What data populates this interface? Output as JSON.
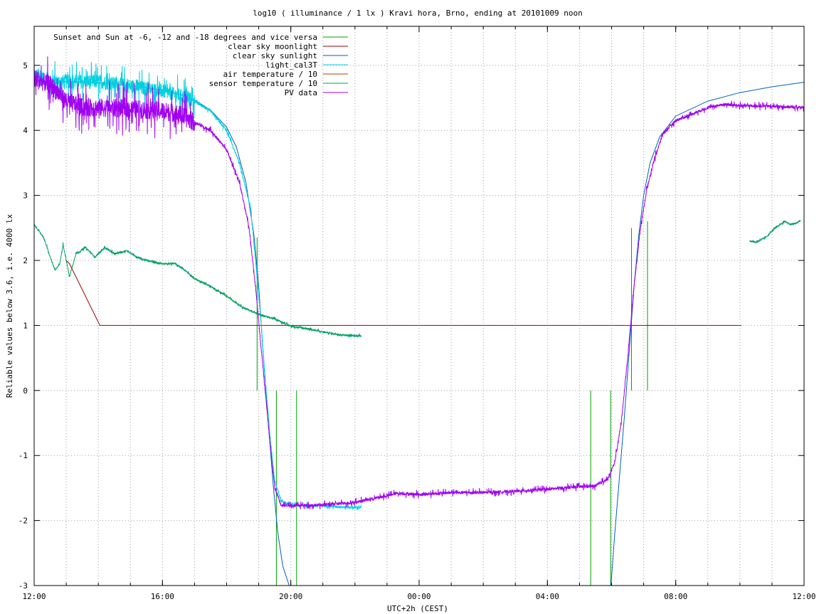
{
  "chart_data": {
    "type": "line",
    "title": "log10 ( illuminance / 1 lx ) Kravi hora, Brno, ending at 20101009 noon",
    "xlabel": "UTC+2h (CEST)",
    "ylabel": "Reliable values below 3.6, i.e. 4000 lx",
    "xlim": [
      12,
      36
    ],
    "ylim": [
      -3,
      5.6
    ],
    "x_unit": "hours since 12:00 local time (UTC+2h)",
    "x_ticks": [
      {
        "x": 12,
        "label": "12:00"
      },
      {
        "x": 16,
        "label": "16:00"
      },
      {
        "x": 20,
        "label": "20:00"
      },
      {
        "x": 24,
        "label": "00:00"
      },
      {
        "x": 28,
        "label": "04:00"
      },
      {
        "x": 32,
        "label": "08:00"
      },
      {
        "x": 36,
        "label": "12:00"
      }
    ],
    "y_ticks": [
      {
        "y": -3,
        "label": "-3"
      },
      {
        "y": -2,
        "label": "-2"
      },
      {
        "y": -1,
        "label": "-1"
      },
      {
        "y": 0,
        "label": "0"
      },
      {
        "y": 1,
        "label": "1"
      },
      {
        "y": 2,
        "label": "2"
      },
      {
        "y": 3,
        "label": "3"
      },
      {
        "y": 4,
        "label": "4"
      },
      {
        "y": 5,
        "label": "5"
      }
    ],
    "grid": true,
    "legend_position": "top-left",
    "series": [
      {
        "name": "Sunset and Sun at -6, -12 and -18 degrees and vice versa",
        "color": "#00a000",
        "style": "vertical-markers",
        "markers": [
          {
            "x": 18.95,
            "y0": 0,
            "y1": 2.35
          },
          {
            "x": 19.55,
            "y0": -3,
            "y1": 0
          },
          {
            "x": 20.18,
            "y0": -3,
            "y1": 0
          },
          {
            "x": 29.35,
            "y0": -3,
            "y1": 0
          },
          {
            "x": 29.97,
            "y0": -3,
            "y1": 0
          },
          {
            "x": 30.62,
            "y0": 0,
            "y1": 2.5
          },
          {
            "x": 31.12,
            "y0": 0,
            "y1": 2.6
          }
        ]
      },
      {
        "name": "clear sky moonlight",
        "color": "#a00000",
        "points": [
          [
            13.0,
            2.0
          ],
          [
            13.1,
            1.95
          ],
          [
            14.05,
            1.0
          ],
          [
            34.05,
            1.0
          ]
        ]
      },
      {
        "name": "clear sky sunlight",
        "color": "#0060c0",
        "points": [
          [
            12.0,
            4.76
          ],
          [
            13.0,
            4.75
          ],
          [
            14.0,
            4.73
          ],
          [
            15.0,
            4.69
          ],
          [
            16.0,
            4.62
          ],
          [
            16.5,
            4.56
          ],
          [
            17.0,
            4.47
          ],
          [
            17.5,
            4.31
          ],
          [
            18.0,
            4.05
          ],
          [
            18.3,
            3.75
          ],
          [
            18.6,
            3.2
          ],
          [
            18.85,
            2.4
          ],
          [
            19.0,
            1.6
          ],
          [
            19.15,
            0.5
          ],
          [
            19.3,
            -0.5
          ],
          [
            19.45,
            -1.45
          ],
          [
            19.6,
            -2.2
          ],
          [
            19.75,
            -2.7
          ],
          [
            19.95,
            -3.0
          ],
          [
            29.98,
            -3.0
          ],
          [
            30.1,
            -2.2
          ],
          [
            30.25,
            -1.3
          ],
          [
            30.4,
            -0.4
          ],
          [
            30.55,
            0.6
          ],
          [
            30.7,
            1.6
          ],
          [
            30.85,
            2.4
          ],
          [
            31.0,
            3.0
          ],
          [
            31.2,
            3.5
          ],
          [
            31.5,
            3.9
          ],
          [
            32.0,
            4.22
          ],
          [
            33.0,
            4.45
          ],
          [
            34.0,
            4.58
          ],
          [
            35.0,
            4.67
          ],
          [
            36.0,
            4.74
          ]
        ]
      },
      {
        "name": "light_cal3T",
        "color": "#00d0e0",
        "noise": 0.1,
        "points": [
          [
            12.0,
            4.85
          ],
          [
            12.5,
            4.75
          ],
          [
            13.0,
            4.75
          ],
          [
            14.0,
            4.75
          ],
          [
            15.0,
            4.68
          ],
          [
            16.0,
            4.6
          ],
          [
            16.8,
            4.5
          ],
          [
            17.5,
            4.3
          ],
          [
            18.0,
            4.0
          ],
          [
            18.4,
            3.5
          ],
          [
            18.75,
            2.8
          ],
          [
            18.9,
            2.0
          ],
          [
            19.05,
            1.2
          ],
          [
            19.2,
            0.2
          ],
          [
            19.35,
            -0.7
          ],
          [
            19.5,
            -1.4
          ],
          [
            19.7,
            -1.7
          ],
          [
            20.0,
            -1.77
          ],
          [
            21.0,
            -1.77
          ],
          [
            21.5,
            -1.79
          ],
          [
            22.2,
            -1.8
          ]
        ]
      },
      {
        "name": "air temperature / 10",
        "color": "#b04000",
        "style": "none",
        "points": []
      },
      {
        "name": "sensor temperature / 10",
        "color": "#00a060",
        "noise": 0.06,
        "segments": [
          [
            [
              12.0,
              2.55
            ],
            [
              12.3,
              2.35
            ],
            [
              12.5,
              2.05
            ],
            [
              12.65,
              1.85
            ],
            [
              12.8,
              1.95
            ],
            [
              12.9,
              2.25
            ],
            [
              13.1,
              1.75
            ],
            [
              13.3,
              2.1
            ],
            [
              13.6,
              2.2
            ],
            [
              13.9,
              2.05
            ],
            [
              14.2,
              2.2
            ],
            [
              14.5,
              2.1
            ],
            [
              14.9,
              2.15
            ],
            [
              15.2,
              2.05
            ],
            [
              15.5,
              2.0
            ],
            [
              16.0,
              1.95
            ],
            [
              16.4,
              1.95
            ],
            [
              16.7,
              1.85
            ],
            [
              17.0,
              1.72
            ],
            [
              17.5,
              1.6
            ],
            [
              18.0,
              1.45
            ],
            [
              18.5,
              1.28
            ],
            [
              19.0,
              1.17
            ],
            [
              19.5,
              1.1
            ],
            [
              20.0,
              0.99
            ],
            [
              20.5,
              0.95
            ],
            [
              21.0,
              0.9
            ],
            [
              21.5,
              0.86
            ],
            [
              22.0,
              0.84
            ],
            [
              22.2,
              0.84
            ]
          ],
          [
            [
              34.3,
              2.3
            ],
            [
              34.5,
              2.28
            ],
            [
              34.8,
              2.35
            ],
            [
              35.1,
              2.5
            ],
            [
              35.4,
              2.6
            ],
            [
              35.6,
              2.55
            ],
            [
              35.8,
              2.58
            ],
            [
              35.9,
              2.62
            ]
          ]
        ]
      },
      {
        "name": "PV data",
        "color": "#a000f0",
        "noise": 0.13,
        "points": [
          [
            12.0,
            4.8
          ],
          [
            12.5,
            4.7
          ],
          [
            13.0,
            4.45
          ],
          [
            13.5,
            4.35
          ],
          [
            14.0,
            4.35
          ],
          [
            15.0,
            4.33
          ],
          [
            16.0,
            4.3
          ],
          [
            16.5,
            4.25
          ],
          [
            17.0,
            4.12
          ],
          [
            17.5,
            4.0
          ],
          [
            18.0,
            3.7
          ],
          [
            18.4,
            3.2
          ],
          [
            18.7,
            2.5
          ],
          [
            18.9,
            1.6
          ],
          [
            19.05,
            0.8
          ],
          [
            19.2,
            0.0
          ],
          [
            19.35,
            -0.8
          ],
          [
            19.5,
            -1.5
          ],
          [
            19.7,
            -1.76
          ],
          [
            20.0,
            -1.77
          ],
          [
            21.0,
            -1.76
          ],
          [
            22.0,
            -1.72
          ],
          [
            23.0,
            -1.62
          ],
          [
            23.3,
            -1.58
          ],
          [
            24.0,
            -1.6
          ],
          [
            25.0,
            -1.57
          ],
          [
            26.0,
            -1.57
          ],
          [
            27.0,
            -1.55
          ],
          [
            28.0,
            -1.52
          ],
          [
            29.0,
            -1.48
          ],
          [
            29.5,
            -1.47
          ],
          [
            29.9,
            -1.35
          ],
          [
            30.1,
            -1.1
          ],
          [
            30.3,
            -0.5
          ],
          [
            30.5,
            0.5
          ],
          [
            30.7,
            1.6
          ],
          [
            30.9,
            2.5
          ],
          [
            31.1,
            3.1
          ],
          [
            31.3,
            3.5
          ],
          [
            31.6,
            3.95
          ],
          [
            32.0,
            4.15
          ],
          [
            32.5,
            4.25
          ],
          [
            33.0,
            4.35
          ],
          [
            33.5,
            4.4
          ],
          [
            34.0,
            4.38
          ],
          [
            35.0,
            4.37
          ],
          [
            36.0,
            4.35
          ]
        ]
      }
    ]
  }
}
